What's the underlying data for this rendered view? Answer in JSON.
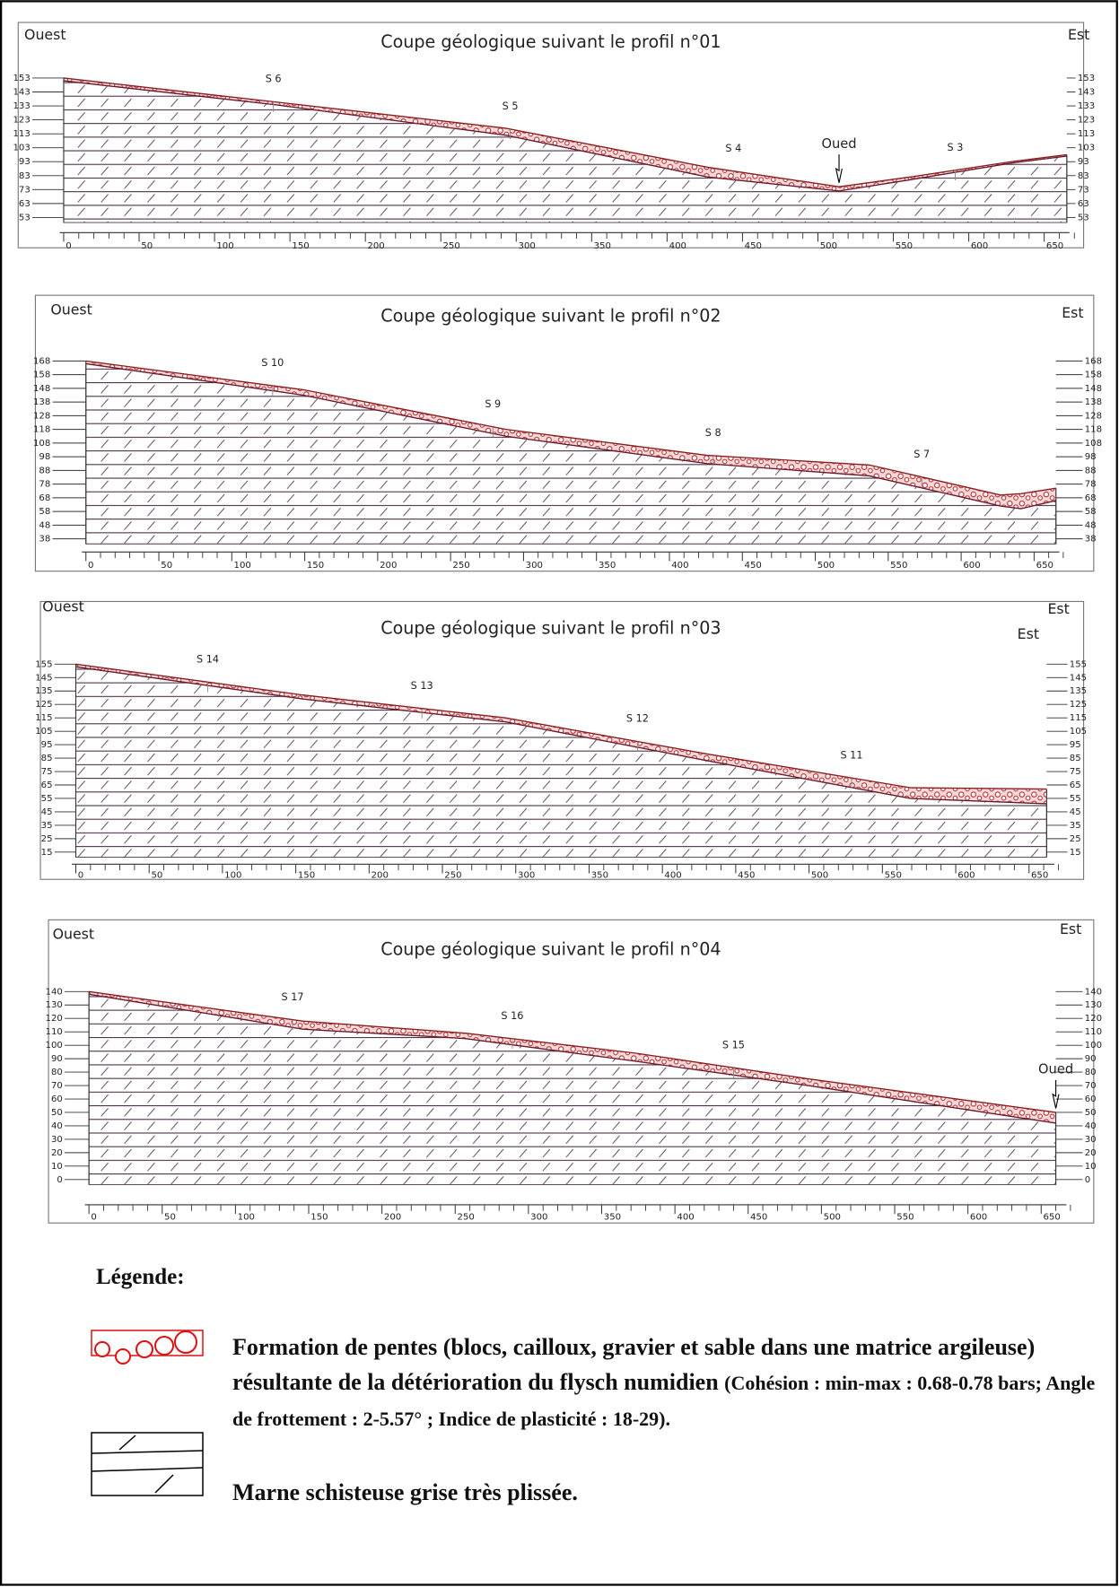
{
  "profiles": [
    {
      "title": "Coupe géologique suivant le profil n°01",
      "west": "Ouest",
      "east": "Est",
      "yticks": [
        153,
        143,
        133,
        123,
        113,
        103,
        93,
        83,
        73,
        63,
        53
      ],
      "xticks": [
        0,
        50,
        100,
        150,
        200,
        250,
        300,
        350,
        400,
        450,
        500,
        550,
        600,
        650
      ],
      "surface": {
        "x": [
          0,
          139,
          293,
          427,
          514,
          561,
          628,
          665
        ],
        "top": [
          153,
          136,
          117,
          89,
          75,
          82,
          93,
          98
        ],
        "base": [
          151,
          134,
          112,
          82,
          72,
          80,
          92,
          97
        ]
      },
      "stations": [
        {
          "label": "S 6",
          "x": 139
        },
        {
          "label": "S 5",
          "x": 296
        },
        {
          "label": "S 4",
          "x": 444
        },
        {
          "label": "S 3",
          "x": 591
        }
      ],
      "annotations": [
        {
          "label": "Oued",
          "x": 514
        }
      ]
    },
    {
      "title": "Coupe géologique suivant le profil n°02",
      "west": "Ouest",
      "east": "Est",
      "yticks": [
        168,
        158,
        148,
        138,
        128,
        118,
        108,
        98,
        88,
        78,
        68,
        58,
        48,
        38
      ],
      "xticks": [
        0,
        50,
        100,
        150,
        200,
        250,
        300,
        350,
        400,
        450,
        500,
        550,
        600,
        650
      ],
      "surface": {
        "x": [
          0,
          149,
          288,
          426,
          537,
          627,
          641,
          665
        ],
        "top": [
          168,
          147,
          118,
          99,
          92,
          70,
          71,
          75
        ],
        "base": [
          166,
          143,
          113,
          93,
          84,
          62,
          60,
          66
        ]
      },
      "stations": [
        {
          "label": "S 10",
          "x": 128
        },
        {
          "label": "S 9",
          "x": 279
        },
        {
          "label": "S 8",
          "x": 430
        },
        {
          "label": "S 7",
          "x": 573
        }
      ],
      "annotations": []
    },
    {
      "title": "Coupe géologique suivant le profil n°03",
      "west": "Ouest",
      "east": "Est",
      "east2": "Est",
      "yticks": [
        155,
        145,
        135,
        125,
        115,
        105,
        95,
        85,
        75,
        65,
        55,
        45,
        35,
        25,
        15
      ],
      "xticks": [
        0,
        50,
        100,
        150,
        200,
        250,
        300,
        350,
        400,
        450,
        500,
        550,
        600,
        650
      ],
      "surface": {
        "x": [
          0,
          155,
          293,
          431,
          569,
          662
        ],
        "top": [
          155,
          132,
          115,
          88,
          63,
          62
        ],
        "base": [
          153,
          129,
          112,
          83,
          55,
          51
        ]
      },
      "stations": [
        {
          "label": "S 14",
          "x": 90
        },
        {
          "label": "S 13",
          "x": 236
        },
        {
          "label": "S 12",
          "x": 383
        },
        {
          "label": "S 11",
          "x": 529
        }
      ],
      "annotations": []
    },
    {
      "title": "Coupe géologique suivant le profil n°04",
      "west": "Ouest",
      "east": "Est",
      "yticks": [
        140,
        130,
        120,
        110,
        100,
        90,
        80,
        70,
        60,
        50,
        40,
        30,
        20,
        10,
        0
      ],
      "xticks": [
        0,
        50,
        100,
        150,
        200,
        250,
        300,
        350,
        400,
        450,
        500,
        550,
        600,
        650
      ],
      "surface": {
        "x": [
          0,
          146,
          257,
          374,
          491,
          660
        ],
        "top": [
          140,
          118,
          109,
          94,
          75,
          50
        ],
        "base": [
          138,
          112,
          105,
          88,
          70,
          42
        ]
      },
      "stations": [
        {
          "label": "S 17",
          "x": 139
        },
        {
          "label": "S 16",
          "x": 289
        },
        {
          "label": "S 15",
          "x": 440
        }
      ],
      "annotations": [
        {
          "label": "Oued",
          "x": 660
        }
      ]
    }
  ],
  "legend": {
    "title": "Légende:",
    "items": [
      {
        "text": "Formation de pentes (blocs, cailloux, gravier et sable dans une matrice argileuse) résultante de la détérioration du flysch numidien",
        "note": "(Cohésion : min-max : 0.68-0.78 bars; Angle de frottement : 2-5.57° ; Indice de plasticité : 18-29)."
      },
      {
        "text": "Marne schisteuse grise très plissée."
      }
    ]
  }
}
